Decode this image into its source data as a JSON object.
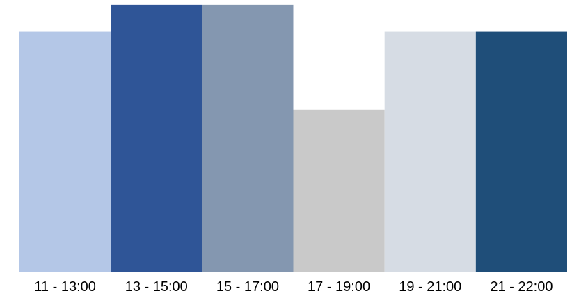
{
  "chart_data": {
    "type": "bar",
    "title": "",
    "xlabel": "",
    "ylabel": "",
    "categories": [
      "11 - 13:00",
      "13 - 15:00",
      "15 - 17:00",
      "17 - 19:00",
      "19 - 21:00",
      "21 - 22:00"
    ],
    "values": [
      89,
      99,
      99,
      60,
      89,
      89
    ],
    "ylim": [
      0,
      100
    ],
    "colors": [
      "#b4c7e7",
      "#2f5597",
      "#8497b0",
      "#c9c9c9",
      "#d6dce4",
      "#1f4e79"
    ],
    "grid": false,
    "legend": "none"
  }
}
